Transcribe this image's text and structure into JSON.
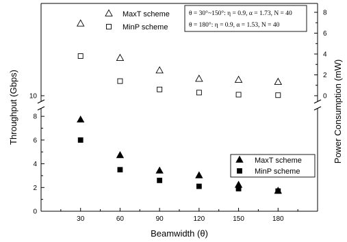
{
  "chart_data": {
    "type": "scatter",
    "xlabel": "Beamwidth (θ)",
    "ylabel_left": "Throughput (Gbps)",
    "ylabel_right": "Power Consumption (mW)",
    "x": [
      30,
      60,
      90,
      120,
      150,
      180
    ],
    "x_ticks": [
      "30",
      "60",
      "90",
      "120",
      "150",
      "180"
    ],
    "xlim": [
      0,
      210
    ],
    "left_axis": {
      "ylim": [
        0,
        8.7
      ],
      "ticks": [
        "0",
        "2",
        "4",
        "6",
        "8"
      ],
      "upper_tick_label": "10"
    },
    "right_axis": {
      "ylim": [
        -1.2,
        8.8
      ],
      "ticks": [
        "0",
        "2",
        "4",
        "6",
        "8"
      ]
    },
    "throughput_series": [
      {
        "name": "MaxT scheme",
        "marker": "filled-triangle",
        "values": [
          7.7,
          4.7,
          3.4,
          3.0,
          2.2,
          1.7
        ]
      },
      {
        "name": "MinP scheme",
        "marker": "filled-square",
        "values": [
          6.0,
          3.5,
          2.6,
          2.1,
          1.9,
          1.7
        ]
      }
    ],
    "power_series": [
      {
        "name": "MaxT scheme",
        "marker": "open-triangle",
        "values": [
          6.9,
          3.6,
          2.4,
          1.6,
          1.5,
          1.3
        ]
      },
      {
        "name": "MinP scheme",
        "marker": "open-square",
        "values": [
          3.8,
          1.4,
          0.6,
          0.3,
          0.1,
          0.05
        ]
      }
    ],
    "legend_power": {
      "placement": "top-right",
      "entries": [
        "MaxT scheme",
        "MinP scheme"
      ]
    },
    "legend_throughput": {
      "placement": "right",
      "entries": [
        "MaxT scheme",
        "MinP scheme"
      ]
    },
    "annotation": [
      "θ = 30°~150°:  η = 0.9, α = 1.73, N = 40",
      "θ = 180°:  η = 0.9, α = 1.53, N = 40"
    ]
  }
}
